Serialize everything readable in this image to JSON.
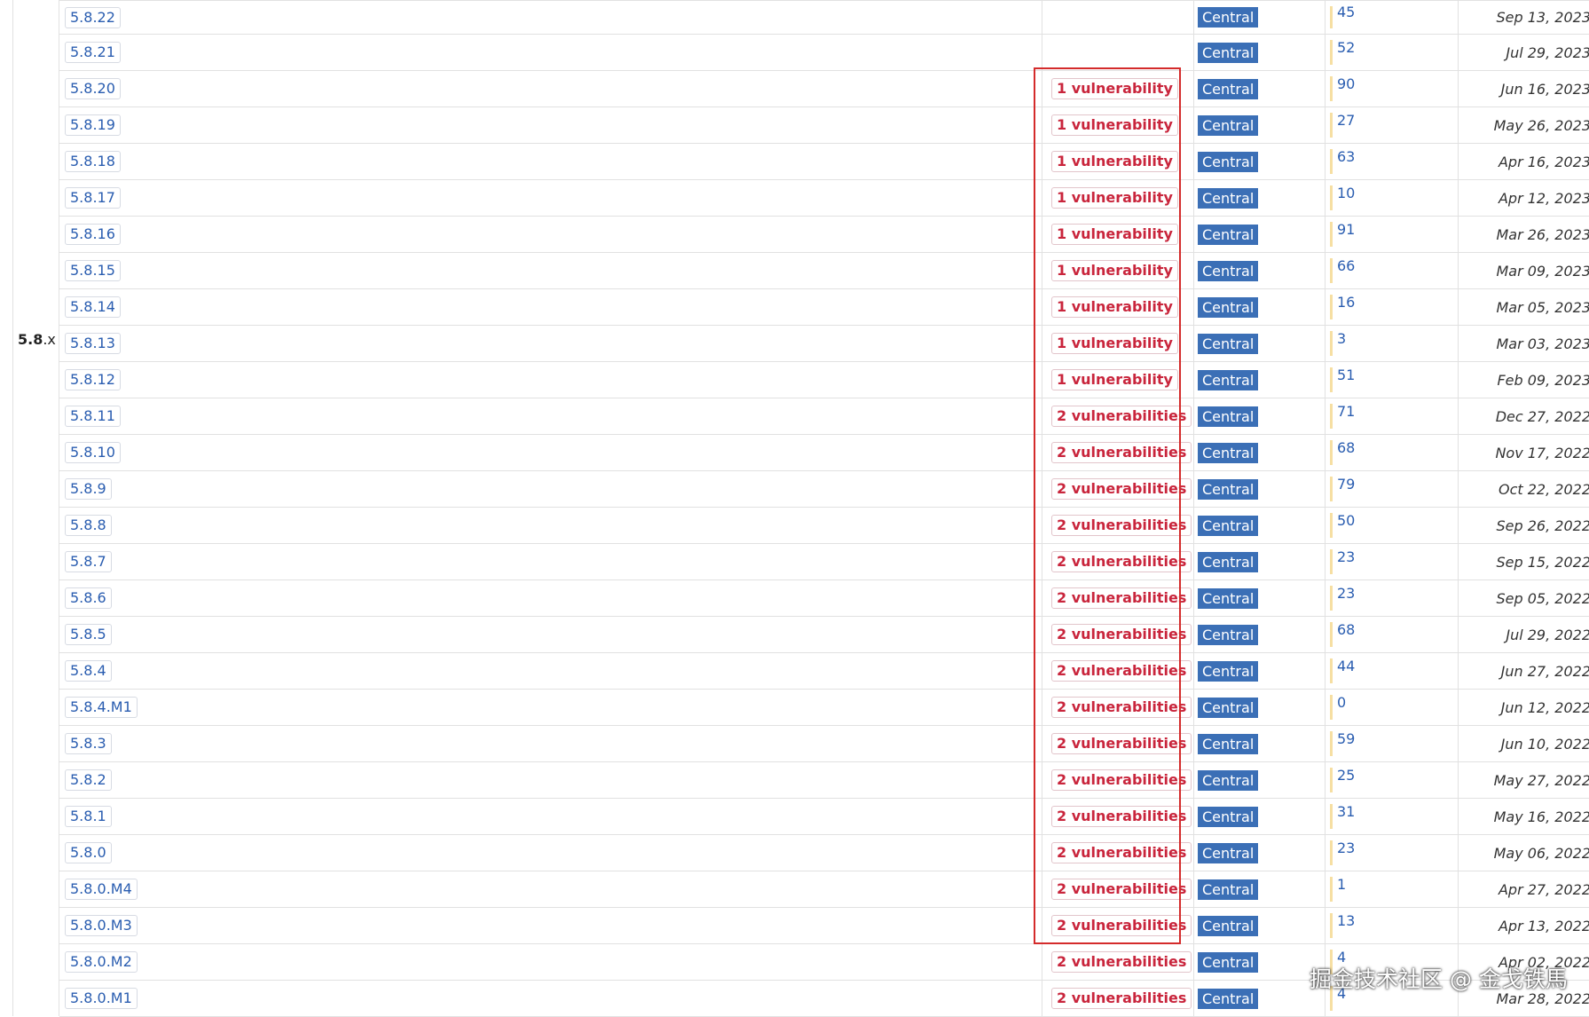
{
  "group": {
    "major": "5.8",
    "suffix": ".x"
  },
  "repository_label": "Central",
  "rows": [
    {
      "version": "5.8.22",
      "vulnerabilities": "",
      "usages": "45",
      "date": "Sep 13, 2023"
    },
    {
      "version": "5.8.21",
      "vulnerabilities": "",
      "usages": "52",
      "date": "Jul 29, 2023"
    },
    {
      "version": "5.8.20",
      "vulnerabilities": "1 vulnerability",
      "usages": "90",
      "date": "Jun 16, 2023"
    },
    {
      "version": "5.8.19",
      "vulnerabilities": "1 vulnerability",
      "usages": "27",
      "date": "May 26, 2023"
    },
    {
      "version": "5.8.18",
      "vulnerabilities": "1 vulnerability",
      "usages": "63",
      "date": "Apr 16, 2023"
    },
    {
      "version": "5.8.17",
      "vulnerabilities": "1 vulnerability",
      "usages": "10",
      "date": "Apr 12, 2023"
    },
    {
      "version": "5.8.16",
      "vulnerabilities": "1 vulnerability",
      "usages": "91",
      "date": "Mar 26, 2023"
    },
    {
      "version": "5.8.15",
      "vulnerabilities": "1 vulnerability",
      "usages": "66",
      "date": "Mar 09, 2023"
    },
    {
      "version": "5.8.14",
      "vulnerabilities": "1 vulnerability",
      "usages": "16",
      "date": "Mar 05, 2023"
    },
    {
      "version": "5.8.13",
      "vulnerabilities": "1 vulnerability",
      "usages": "3",
      "date": "Mar 03, 2023"
    },
    {
      "version": "5.8.12",
      "vulnerabilities": "1 vulnerability",
      "usages": "51",
      "date": "Feb 09, 2023"
    },
    {
      "version": "5.8.11",
      "vulnerabilities": "2 vulnerabilities",
      "usages": "71",
      "date": "Dec 27, 2022"
    },
    {
      "version": "5.8.10",
      "vulnerabilities": "2 vulnerabilities",
      "usages": "68",
      "date": "Nov 17, 2022"
    },
    {
      "version": "5.8.9",
      "vulnerabilities": "2 vulnerabilities",
      "usages": "79",
      "date": "Oct 22, 2022"
    },
    {
      "version": "5.8.8",
      "vulnerabilities": "2 vulnerabilities",
      "usages": "50",
      "date": "Sep 26, 2022"
    },
    {
      "version": "5.8.7",
      "vulnerabilities": "2 vulnerabilities",
      "usages": "23",
      "date": "Sep 15, 2022"
    },
    {
      "version": "5.8.6",
      "vulnerabilities": "2 vulnerabilities",
      "usages": "23",
      "date": "Sep 05, 2022"
    },
    {
      "version": "5.8.5",
      "vulnerabilities": "2 vulnerabilities",
      "usages": "68",
      "date": "Jul 29, 2022"
    },
    {
      "version": "5.8.4",
      "vulnerabilities": "2 vulnerabilities",
      "usages": "44",
      "date": "Jun 27, 2022"
    },
    {
      "version": "5.8.4.M1",
      "vulnerabilities": "2 vulnerabilities",
      "usages": "0",
      "date": "Jun 12, 2022"
    },
    {
      "version": "5.8.3",
      "vulnerabilities": "2 vulnerabilities",
      "usages": "59",
      "date": "Jun 10, 2022"
    },
    {
      "version": "5.8.2",
      "vulnerabilities": "2 vulnerabilities",
      "usages": "25",
      "date": "May 27, 2022"
    },
    {
      "version": "5.8.1",
      "vulnerabilities": "2 vulnerabilities",
      "usages": "31",
      "date": "May 16, 2022"
    },
    {
      "version": "5.8.0",
      "vulnerabilities": "2 vulnerabilities",
      "usages": "23",
      "date": "May 06, 2022"
    },
    {
      "version": "5.8.0.M4",
      "vulnerabilities": "2 vulnerabilities",
      "usages": "1",
      "date": "Apr 27, 2022"
    },
    {
      "version": "5.8.0.M3",
      "vulnerabilities": "2 vulnerabilities",
      "usages": "13",
      "date": "Apr 13, 2022"
    },
    {
      "version": "5.8.0.M2",
      "vulnerabilities": "2 vulnerabilities",
      "usages": "4",
      "date": "Apr 02, 2022"
    },
    {
      "version": "5.8.0.M1",
      "vulnerabilities": "2 vulnerabilities",
      "usages": "4",
      "date": "Mar 28, 2022"
    }
  ],
  "watermark": "掘金技术社区 @ 金戈铁馬",
  "colors": {
    "link": "#2a5db0",
    "vulnerability": "#c9253c",
    "repo_badge_bg": "#3b6fb6",
    "usage_bar": "#f6dfa3",
    "highlight_border": "#d42b2b"
  }
}
